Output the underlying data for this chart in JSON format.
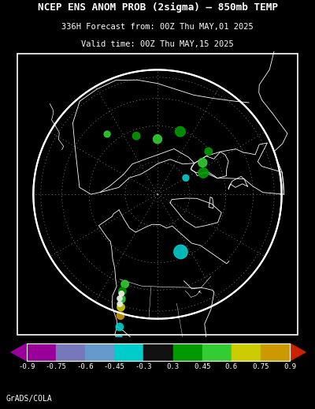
{
  "title_line1": "NCEP ENS ANOM PROB (2sigma) – 850mb TEMP",
  "title_line2": "336H Forecast from: 00Z Thu MAY,01 2025",
  "title_line3": "Valid time: 00Z Thu MAY,15 2025",
  "background_color": "#000000",
  "map_bg_color": "#000000",
  "border_color": "#ffffff",
  "title_color": "#ffffff",
  "footer_text": "GrADS/COLA",
  "footer_color": "#ffffff",
  "grid_color": "#aaaaaa",
  "coast_color": "#ffffff",
  "colorbar_labels": [
    "-0.9",
    "-0.75",
    "-0.6",
    "-0.45",
    "-0.3",
    "0.3",
    "0.45",
    "0.6",
    "0.75",
    "0.9"
  ],
  "seg_colors": [
    "#990099",
    "#7777bb",
    "#6699cc",
    "#00cccc",
    "#111111",
    "#009900",
    "#33cc33",
    "#cccc00",
    "#cc9900"
  ],
  "left_arrow_color": "#990099",
  "right_arrow_color": "#cc2200",
  "map_image": "target_map_placeholder"
}
